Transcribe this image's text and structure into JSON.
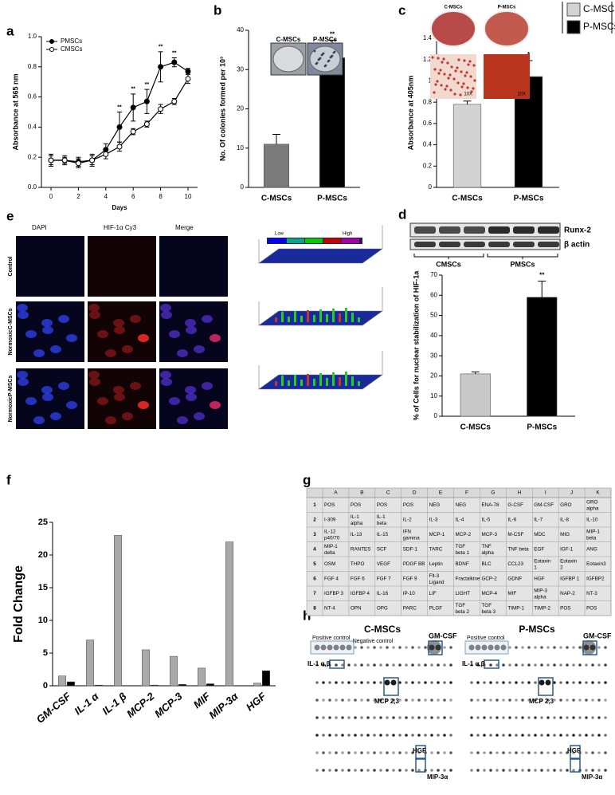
{
  "panels": {
    "labels": [
      "a",
      "b",
      "c",
      "d",
      "e",
      "f",
      "g",
      "h"
    ],
    "b_photos": [
      "C-MSCs",
      "P-MSCs"
    ],
    "c_photos": [
      "C-MSCs",
      "P-MSCs",
      "10X",
      "10X"
    ],
    "d_blot": {
      "bands": [
        "Runx-2",
        "β actin"
      ],
      "groups": [
        "CMSCs",
        "PMSCs"
      ]
    },
    "e": {
      "columns": [
        "DAPI",
        "HIF-1α Cy3",
        "Merge"
      ],
      "rows": [
        "Control",
        "NormoxicC-MSCs",
        "NormoxicP-MSCs"
      ],
      "scale": [
        "Low",
        "High"
      ]
    },
    "h": {
      "titles": [
        "C-MSCs",
        "P-MSCs"
      ],
      "labels": [
        "Positive control",
        "Negative control",
        "GM-CSF",
        "IL-1 α,β",
        "MCP 2,3",
        "HGF",
        "MIP-3α"
      ]
    }
  },
  "table": {
    "header": [
      "A",
      "B",
      "C",
      "D",
      "E",
      "F",
      "G",
      "H",
      "I",
      "J",
      "K"
    ],
    "rows": [
      [
        "1",
        "POS",
        "POS",
        "POS",
        "POS",
        "NEG",
        "NEG",
        "ENA-78",
        "G-CSF",
        "GM-CSF",
        "GRO",
        "GRO alpha"
      ],
      [
        "2",
        "I-309",
        "IL-1 alpha",
        "IL-1 beta",
        "IL-2",
        "IL-3",
        "IL-4",
        "IL-5",
        "IL-6",
        "IL-7",
        "IL-8",
        "IL-10"
      ],
      [
        "3",
        "IL-12 p40/70",
        "IL-13",
        "IL-15",
        "IFN gamma",
        "MCP-1",
        "MCP-2",
        "MCP-3",
        "M-CSF",
        "MDC",
        "MIG",
        "MIP-1 beta"
      ],
      [
        "4",
        "MIP-1 delta",
        "RANTES",
        "SCF",
        "SDF-1",
        "TARC",
        "TGF beta 1",
        "TNF alpha",
        "TNF beta",
        "EGF",
        "IGF-1",
        "ANG"
      ],
      [
        "5",
        "OSM",
        "THPO",
        "VEGF",
        "PDGF BB",
        "Leptin",
        "BDNF",
        "BLC",
        "CCL23",
        "Eotaxin 1",
        "Eotaxin 2",
        "Eotaxin3"
      ],
      [
        "6",
        "FGF 4",
        "FGF 6",
        "FGF 7",
        "FGF 9",
        "Flt-3 Ligand",
        "Fractalkine",
        "GCP-2",
        "GDNF",
        "HGF",
        "IGFBP 1",
        "IGFBP2"
      ],
      [
        "7",
        "IGFBP 3",
        "IGFBP 4",
        "IL-16",
        "IP-10",
        "LIF",
        "LIGHT",
        "MCP-4",
        "MIF",
        "MIP-3 alpha",
        "NAP-2",
        "NT-3"
      ],
      [
        "8",
        "NT-4",
        "OPN",
        "OPG",
        "PARC",
        "PLGF",
        "TGF beta 2",
        "TGF beta 3",
        "TIMP-1",
        "TIMP-2",
        "POS",
        "POS"
      ]
    ]
  },
  "chart_data": [
    {
      "type": "line",
      "xlabel": "Days",
      "ylabel": "Absorbance at 565 nm",
      "x": [
        0,
        1,
        2,
        3,
        4,
        5,
        6,
        7,
        8,
        9,
        10
      ],
      "xlim": [
        -0.7,
        10.7
      ],
      "xticks": [
        0,
        2,
        4,
        6,
        8,
        10
      ],
      "ylim": [
        0,
        1
      ],
      "yticks": [
        {
          "value": 0,
          "label": "0.0"
        },
        0.2,
        0.4,
        0.6,
        0.8,
        {
          "value": 1,
          "label": "1.0"
        }
      ],
      "legend": "upper left",
      "series": [
        {
          "name": "PMSCs",
          "color": "#000000",
          "marker_fill": "#000000",
          "values": [
            0.18,
            0.18,
            0.17,
            0.18,
            0.25,
            0.4,
            0.53,
            0.57,
            0.8,
            0.83,
            0.77
          ],
          "errors": [
            0.04,
            0.03,
            0.03,
            0.04,
            0.04,
            0.1,
            0.09,
            0.08,
            0.1,
            0.03,
            0.02
          ]
        },
        {
          "name": "CMSCs",
          "color": "#000000",
          "marker_fill": "#ffffff",
          "values": [
            0.18,
            0.18,
            0.16,
            0.18,
            0.22,
            0.27,
            0.37,
            0.42,
            0.52,
            0.57,
            0.72
          ],
          "errors": [
            0.03,
            0.02,
            0.03,
            0.03,
            0.03,
            0.03,
            0.02,
            0.02,
            0.03,
            0.02,
            0.03
          ]
        }
      ],
      "annotations": [
        {
          "x": 5,
          "text": "**"
        },
        {
          "x": 6,
          "text": "**"
        },
        {
          "x": 7,
          "text": "**"
        },
        {
          "x": 8,
          "text": "**"
        },
        {
          "x": 9,
          "text": "**"
        }
      ]
    },
    {
      "type": "bar",
      "ylabel": "No. Of colonies formed per 10³",
      "categories": [
        "C-MSCs",
        "P-MSCs"
      ],
      "values": [
        11,
        33
      ],
      "errors": [
        2.5,
        4.5
      ],
      "colors": [
        "#7a7a7a",
        "#000000"
      ],
      "ylim": [
        0,
        40
      ],
      "yticks": [
        0,
        10,
        20,
        30,
        40
      ],
      "annotations": [
        {
          "category": "P-MSCs",
          "text": "**"
        }
      ]
    },
    {
      "type": "bar",
      "ylabel": "Absorbance at 405nm",
      "categories": [
        "C-MSCs",
        "P-MSCs"
      ],
      "values": [
        0.78,
        1.04
      ],
      "errors": [
        0.03,
        0.15
      ],
      "colors": [
        "#d3d3d3",
        "#000000"
      ],
      "ylim": [
        0,
        1.4
      ],
      "yticks": [
        0,
        0.2,
        0.4,
        0.6,
        0.8,
        1,
        1.2,
        1.4
      ],
      "legend": "right",
      "series_names": [
        "C-MSCs",
        "P-MSCs"
      ],
      "annotations": [
        {
          "category": "P-MSCs",
          "text": "*"
        }
      ]
    },
    {
      "type": "bar",
      "ylabel": "% of Cells for nuclear stabilization of HIF-1a",
      "categories": [
        "C-MSCs",
        "P-MSCs"
      ],
      "values": [
        21,
        59
      ],
      "errors": [
        1,
        8
      ],
      "colors": [
        "#c8c8c8",
        "#000000"
      ],
      "ylim": [
        0,
        70
      ],
      "yticks": [
        0,
        10,
        20,
        30,
        40,
        50,
        60,
        70
      ],
      "annotations": [
        {
          "category": "P-MSCs",
          "text": "**"
        }
      ]
    },
    {
      "type": "bar",
      "ylabel": "Fold Change",
      "categories": [
        "GM-CSF",
        "IL-1 α",
        "IL-1 β",
        "MCP-2",
        "MCP-3",
        "MIF",
        "MIP-3α",
        "HGF"
      ],
      "ylim": [
        0,
        25
      ],
      "yticks": [
        0,
        5,
        10,
        15,
        20,
        25
      ],
      "series": [
        {
          "color": "#a9a9a9",
          "values": [
            1.5,
            7,
            23,
            5.5,
            4.5,
            2.7,
            22,
            0.4
          ]
        },
        {
          "color": "#000000",
          "values": [
            0.6,
            0.1,
            0,
            0.1,
            0.2,
            0.3,
            0,
            2.3
          ]
        }
      ]
    }
  ]
}
